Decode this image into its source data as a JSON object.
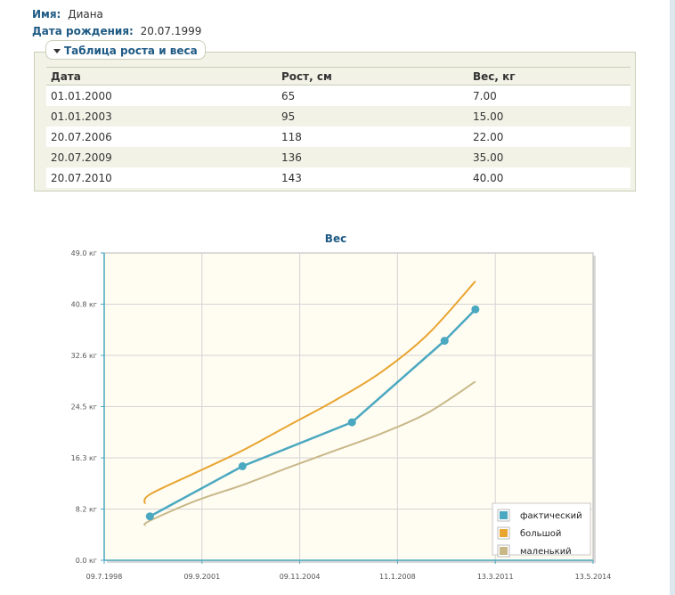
{
  "person": {
    "name_label": "Имя:",
    "name_value": "Диана",
    "birth_label": "Дата рождения:",
    "birth_value": "20.07.1999"
  },
  "table_section": {
    "toggle_label": "Таблица роста и веса",
    "headers": [
      "Дата",
      "Рост, см",
      "Вес, кг"
    ],
    "rows": [
      [
        "01.01.2000",
        "65",
        "7.00"
      ],
      [
        "01.01.2003",
        "95",
        "15.00"
      ],
      [
        "20.07.2006",
        "118",
        "22.00"
      ],
      [
        "20.07.2009",
        "136",
        "35.00"
      ],
      [
        "20.07.2010",
        "143",
        "40.00"
      ]
    ]
  },
  "chart_data": {
    "type": "line",
    "title": "Вес",
    "y_ticks": [
      "0.0 кг",
      "8.2 кг",
      "16.3 кг",
      "24.5 кг",
      "32.6 кг",
      "40.8 кг",
      "49.0 кг"
    ],
    "x_ticks": [
      "09.7.1998",
      "09.9.2001",
      "09.11.2004",
      "11.1.2008",
      "13.3.2011",
      "13.5.2014"
    ],
    "ylim": [
      0,
      49.0
    ],
    "xlim": [
      "1998-07-09",
      "2014-05-13"
    ],
    "grid": true,
    "legend_position": "bottom-right",
    "series": [
      {
        "name": "фактический",
        "color": "#4aa8c0",
        "markers": true,
        "points": [
          {
            "x": "2000-01-01",
            "y": 7.0
          },
          {
            "x": "2003-01-01",
            "y": 15.0
          },
          {
            "x": "2006-07-20",
            "y": 22.0
          },
          {
            "x": "2009-07-20",
            "y": 35.0
          },
          {
            "x": "2010-07-20",
            "y": 40.0
          }
        ]
      },
      {
        "name": "большой",
        "color": "#e8a530",
        "markers": false,
        "points": [
          {
            "x": "1999-11-01",
            "y": 9.0
          },
          {
            "x": "2000-01-01",
            "y": 10.5
          },
          {
            "x": "2001-07-01",
            "y": 14.0
          },
          {
            "x": "2003-01-01",
            "y": 17.5
          },
          {
            "x": "2004-07-01",
            "y": 21.5
          },
          {
            "x": "2006-01-01",
            "y": 25.5
          },
          {
            "x": "2007-07-01",
            "y": 30.0
          },
          {
            "x": "2009-01-01",
            "y": 36.0
          },
          {
            "x": "2010-07-20",
            "y": 44.5
          }
        ]
      },
      {
        "name": "маленький",
        "color": "#c8b888",
        "markers": false,
        "points": [
          {
            "x": "1999-11-01",
            "y": 5.5
          },
          {
            "x": "2000-01-01",
            "y": 6.3
          },
          {
            "x": "2001-07-01",
            "y": 9.5
          },
          {
            "x": "2003-01-01",
            "y": 12.0
          },
          {
            "x": "2004-07-01",
            "y": 14.8
          },
          {
            "x": "2006-01-01",
            "y": 17.5
          },
          {
            "x": "2007-07-01",
            "y": 20.2
          },
          {
            "x": "2009-01-01",
            "y": 23.5
          },
          {
            "x": "2010-07-20",
            "y": 28.5
          }
        ]
      }
    ]
  }
}
